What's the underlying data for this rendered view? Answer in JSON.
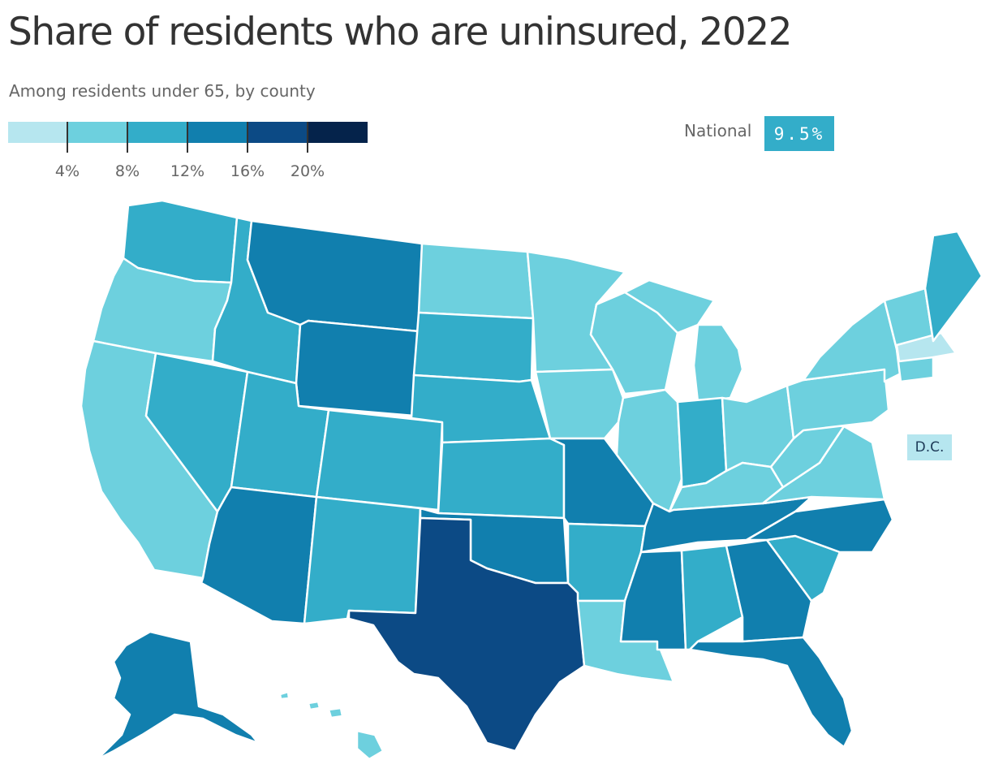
{
  "header": {
    "title": "Share of residents who are uninsured, 2022",
    "subtitle": "Among residents under 65, by county"
  },
  "legend": {
    "colors": [
      "#b6e6ef",
      "#6dd0de",
      "#33adc9",
      "#117fae",
      "#0c4a85",
      "#05234b"
    ],
    "thresholds": [
      4,
      8,
      12,
      16,
      20
    ],
    "tick_labels": [
      "4%",
      "8%",
      "12%",
      "16%",
      "20%"
    ]
  },
  "national": {
    "label": "National",
    "value_text": "9.5%",
    "value_color": "#33adc9"
  },
  "map": {
    "unit": "percent uninsured",
    "regions": [
      {
        "name": "Washington",
        "bucket": 2
      },
      {
        "name": "Oregon",
        "bucket": 1
      },
      {
        "name": "California",
        "bucket": 1
      },
      {
        "name": "Nevada",
        "bucket": 2
      },
      {
        "name": "Idaho",
        "bucket": 2
      },
      {
        "name": "Montana",
        "bucket": 3
      },
      {
        "name": "Wyoming",
        "bucket": 3
      },
      {
        "name": "Utah",
        "bucket": 2
      },
      {
        "name": "Arizona",
        "bucket": 3
      },
      {
        "name": "Colorado",
        "bucket": 2
      },
      {
        "name": "New Mexico",
        "bucket": 2
      },
      {
        "name": "North Dakota",
        "bucket": 1
      },
      {
        "name": "South Dakota",
        "bucket": 2
      },
      {
        "name": "Nebraska",
        "bucket": 2
      },
      {
        "name": "Kansas",
        "bucket": 2
      },
      {
        "name": "Oklahoma",
        "bucket": 3
      },
      {
        "name": "Texas",
        "bucket": 4
      },
      {
        "name": "Minnesota",
        "bucket": 1
      },
      {
        "name": "Iowa",
        "bucket": 1
      },
      {
        "name": "Missouri",
        "bucket": 3
      },
      {
        "name": "Arkansas",
        "bucket": 2
      },
      {
        "name": "Louisiana",
        "bucket": 1
      },
      {
        "name": "Wisconsin",
        "bucket": 1
      },
      {
        "name": "Illinois",
        "bucket": 1
      },
      {
        "name": "Michigan",
        "bucket": 1
      },
      {
        "name": "Indiana",
        "bucket": 2
      },
      {
        "name": "Ohio",
        "bucket": 1
      },
      {
        "name": "Kentucky",
        "bucket": 1
      },
      {
        "name": "Tennessee",
        "bucket": 3
      },
      {
        "name": "Mississippi",
        "bucket": 3
      },
      {
        "name": "Alabama",
        "bucket": 2
      },
      {
        "name": "Georgia",
        "bucket": 3
      },
      {
        "name": "Florida",
        "bucket": 3
      },
      {
        "name": "South Carolina",
        "bucket": 2
      },
      {
        "name": "North Carolina",
        "bucket": 3
      },
      {
        "name": "Virginia",
        "bucket": 1
      },
      {
        "name": "West Virginia",
        "bucket": 1
      },
      {
        "name": "Pennsylvania",
        "bucket": 1
      },
      {
        "name": "New York",
        "bucket": 1
      },
      {
        "name": "New England",
        "bucket": 1
      },
      {
        "name": "Massachusetts",
        "bucket": 0
      },
      {
        "name": "Maine",
        "bucket": 2
      },
      {
        "name": "Alaska",
        "bucket": 3
      },
      {
        "name": "Hawaii",
        "bucket": 1
      }
    ],
    "dc": {
      "label": "D.C.",
      "bucket": 0
    }
  }
}
